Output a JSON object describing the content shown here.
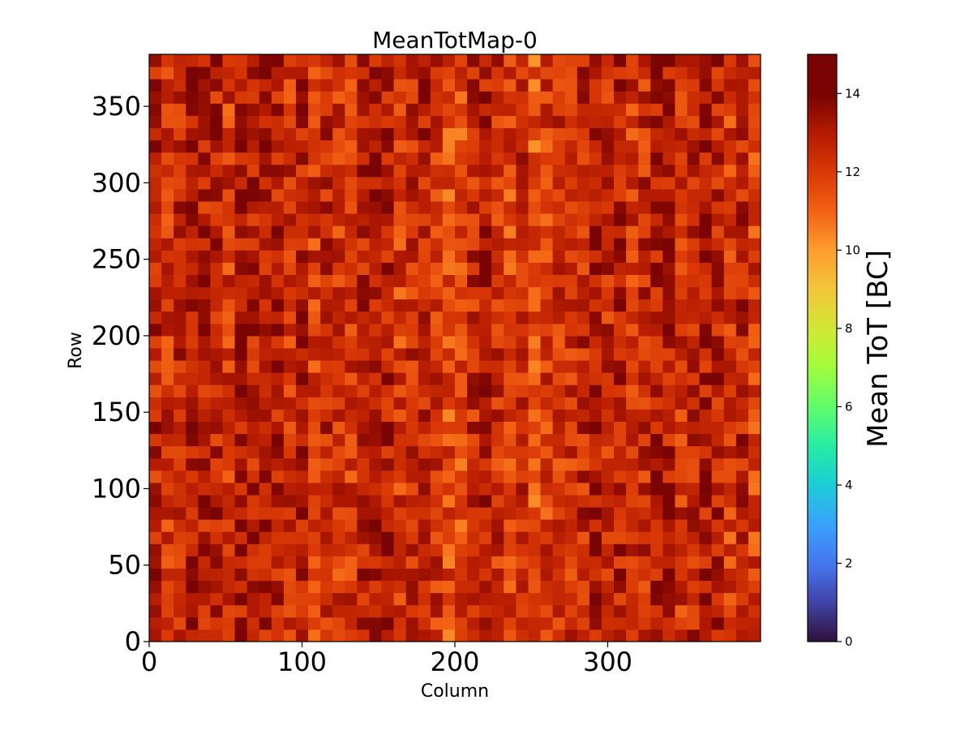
{
  "chart_data": {
    "type": "heatmap",
    "title": "MeanTotMap-0",
    "xlabel": "Column",
    "ylabel": "Row",
    "xlim": [
      0,
      400
    ],
    "ylim": [
      0,
      384
    ],
    "x_ticks": [
      0,
      100,
      200,
      300
    ],
    "y_ticks": [
      0,
      50,
      100,
      150,
      200,
      250,
      300,
      350
    ],
    "colormap": "turbo",
    "color_range": [
      0,
      15
    ],
    "colorbar": {
      "label": "Mean ToT [BC]",
      "ticks": [
        0,
        2,
        4,
        6,
        8,
        10,
        12,
        14
      ]
    },
    "value_summary": {
      "typical_range": [
        10,
        15
      ],
      "dominant_value": 12.5
    },
    "grid": false
  }
}
